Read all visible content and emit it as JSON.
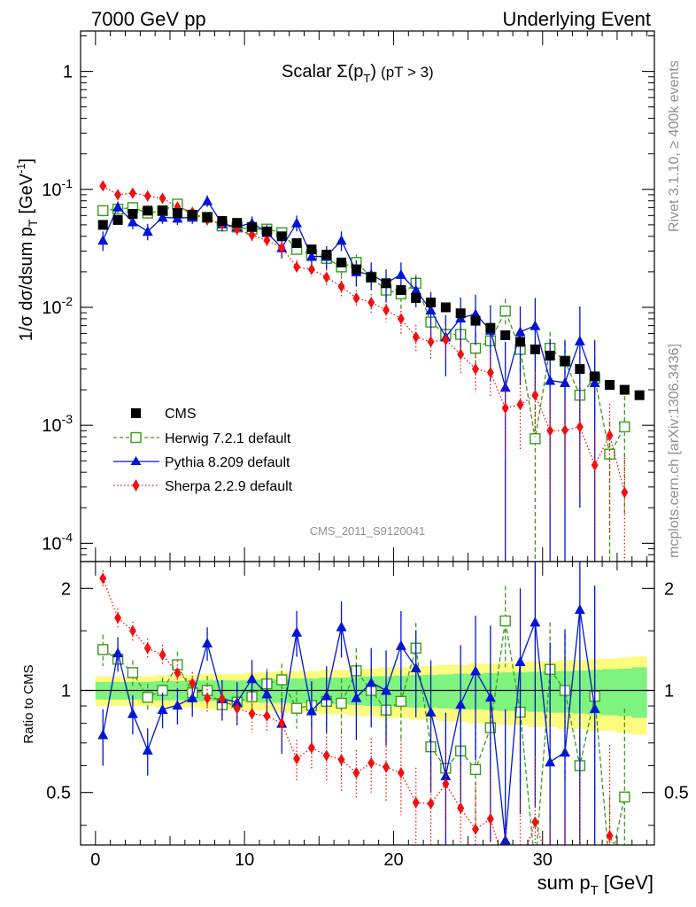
{
  "header": {
    "left": "7000 GeV pp",
    "right": "Underlying Event"
  },
  "side": {
    "rivet": "Rivet 3.1.10, ≥ 400k events",
    "mcplots": "mcplots.cern.ch [arXiv:1306.3436]"
  },
  "main": {
    "title_main": "Scalar Σ(p",
    "title_sub": "T",
    "title_close": ")",
    "title_cut": "(pT >  3)",
    "watermark": "CMS_2011_S9120041",
    "ylabel": "1/σ dσ/dsum p",
    "ylabel_sub": "T",
    "ylabel_unit": "[GeV",
    "ylabel_unit_sup": "-1",
    "ylabel_close": "]",
    "yticks": [
      {
        "base": "10",
        "exp": "-4",
        "value": 0.0001
      },
      {
        "base": "10",
        "exp": "-3",
        "value": 0.001
      },
      {
        "base": "10",
        "exp": "-2",
        "value": 0.01
      },
      {
        "base": "10",
        "exp": "-1",
        "value": 0.1
      },
      {
        "base": "1",
        "exp": "",
        "value": 1
      }
    ]
  },
  "ratio": {
    "ylabel": "Ratio to CMS",
    "yticks": [
      "0.5",
      "1",
      "2"
    ]
  },
  "xaxis": {
    "label": "sum p",
    "label_sub": "T",
    "label_unit": "[GeV]",
    "ticks": [
      "0",
      "10",
      "20",
      "30"
    ]
  },
  "legend": {
    "cms": "CMS",
    "herwig": "Herwig 7.2.1 default",
    "pythia": "Pythia 8.209 default",
    "sherpa": "Sherpa 2.2.9 default"
  },
  "colors": {
    "cms": "#000000",
    "herwig": "#3a9a1c",
    "pythia": "#0015d6",
    "sherpa": "#f01010",
    "band_inner": "#7ef37e",
    "band_outer": "#fbfb7e"
  },
  "chart_data": {
    "type": "scatter",
    "xlabel": "sum pT [GeV]",
    "ylabel": "1/σ dσ/dsum pT [GeV^-1]",
    "log_y": true,
    "xlim": [
      -1,
      37.5
    ],
    "ylim": [
      7e-05,
      2.2
    ],
    "ratio_ylim": [
      0.35,
      2.4
    ],
    "x": [
      0.5,
      1.5,
      2.5,
      3.5,
      4.5,
      5.5,
      6.5,
      7.5,
      8.5,
      9.5,
      10.5,
      11.5,
      12.5,
      13.5,
      14.5,
      15.5,
      16.5,
      17.5,
      18.5,
      19.5,
      20.5,
      21.5,
      22.5,
      23.5,
      24.5,
      25.5,
      26.5,
      27.5,
      28.5,
      29.5,
      30.5,
      31.5,
      32.5,
      33.5,
      34.5,
      35.5,
      36.5
    ],
    "series": [
      {
        "name": "CMS",
        "values": [
          0.05,
          0.055,
          0.062,
          0.066,
          0.066,
          0.063,
          0.061,
          0.058,
          0.054,
          0.052,
          0.048,
          0.044,
          0.04,
          0.035,
          0.031,
          0.028,
          0.024,
          0.021,
          0.018,
          0.016,
          0.014,
          0.012,
          0.011,
          0.01,
          0.0089,
          0.0077,
          0.0067,
          0.0058,
          0.0051,
          0.0044,
          0.0039,
          0.0035,
          0.003,
          0.0026,
          0.0022,
          0.002,
          0.0018
        ]
      },
      {
        "name": "Herwig 7.2.1 default",
        "values": [
          0.066,
          0.068,
          0.07,
          0.063,
          0.066,
          0.075,
          0.06,
          0.058,
          0.049,
          0.048,
          0.046,
          0.046,
          0.043,
          0.031,
          0.028,
          0.026,
          0.022,
          0.024,
          0.018,
          0.014,
          0.013,
          0.016,
          0.0075,
          0.0059,
          0.0059,
          0.0045,
          0.0052,
          0.0093,
          0.0044,
          0.00077,
          0.0045,
          0.0035,
          0.0018,
          0.0025,
          0.00057,
          0.00097
        ],
        "err": [
          0.007,
          0.006,
          0.006,
          0.006,
          0.006,
          0.007,
          0.006,
          0.006,
          0.005,
          0.005,
          0.005,
          0.005,
          0.005,
          0.004,
          0.004,
          0.004,
          0.004,
          0.004,
          0.003,
          0.003,
          0.003,
          0.003,
          0.002,
          0.0018,
          0.0018,
          0.0016,
          0.0017,
          0.0025,
          0.0017,
          0.0007,
          0.0017,
          0.0016,
          0.001,
          0.0014,
          0.0005,
          0.0008
        ]
      },
      {
        "name": "Pythia 8.209 default",
        "values": [
          0.037,
          0.071,
          0.053,
          0.044,
          0.058,
          0.057,
          0.058,
          0.08,
          0.051,
          0.048,
          0.052,
          0.043,
          0.032,
          0.052,
          0.027,
          0.027,
          0.037,
          0.02,
          0.019,
          0.016,
          0.019,
          0.014,
          0.0095,
          0.0056,
          0.0081,
          0.0088,
          0.0064,
          0.0021,
          0.0062,
          0.007,
          0.0024,
          0.0023,
          0.0052,
          0.0023
        ],
        "err": [
          0.007,
          0.008,
          0.007,
          0.007,
          0.007,
          0.007,
          0.007,
          0.009,
          0.007,
          0.007,
          0.007,
          0.007,
          0.006,
          0.008,
          0.006,
          0.006,
          0.007,
          0.005,
          0.005,
          0.005,
          0.005,
          0.004,
          0.004,
          0.003,
          0.004,
          0.004,
          0.004,
          0.003,
          0.004,
          0.005,
          0.003,
          0.003,
          0.005,
          0.003
        ]
      },
      {
        "name": "Sherpa 2.2.9 default",
        "values": [
          0.107,
          0.09,
          0.093,
          0.088,
          0.084,
          0.071,
          0.064,
          0.055,
          0.051,
          0.046,
          0.041,
          0.037,
          0.032,
          0.022,
          0.021,
          0.018,
          0.015,
          0.012,
          0.011,
          0.0095,
          0.008,
          0.0056,
          0.0051,
          0.0053,
          0.004,
          0.003,
          0.0028,
          0.0014,
          0.0015,
          0.0018,
          0.0009,
          0.00091,
          0.00097,
          0.00046,
          0.00082,
          0.00027
        ],
        "err": [
          0.006,
          0.006,
          0.006,
          0.006,
          0.006,
          0.006,
          0.005,
          0.005,
          0.005,
          0.005,
          0.005,
          0.004,
          0.004,
          0.003,
          0.003,
          0.003,
          0.003,
          0.002,
          0.002,
          0.002,
          0.002,
          0.0015,
          0.0015,
          0.0015,
          0.0013,
          0.0011,
          0.0011,
          0.0009,
          0.0009,
          0.001,
          0.0007,
          0.0007,
          0.0007,
          0.0004,
          0.0007,
          0.0003
        ]
      }
    ],
    "ratio_band": {
      "inner": [
        0.06,
        0.06,
        0.06,
        0.06,
        0.065,
        0.065,
        0.07,
        0.07,
        0.07,
        0.07,
        0.075,
        0.08,
        0.08,
        0.085,
        0.085,
        0.09,
        0.09,
        0.095,
        0.1,
        0.1,
        0.105,
        0.11,
        0.11,
        0.115,
        0.12,
        0.12,
        0.125,
        0.13,
        0.13,
        0.135,
        0.14,
        0.14,
        0.145,
        0.15,
        0.155,
        0.16,
        0.17
      ],
      "outer": [
        0.1,
        0.1,
        0.1,
        0.1,
        0.11,
        0.11,
        0.11,
        0.12,
        0.12,
        0.12,
        0.13,
        0.13,
        0.14,
        0.14,
        0.14,
        0.15,
        0.15,
        0.16,
        0.16,
        0.17,
        0.17,
        0.18,
        0.18,
        0.19,
        0.19,
        0.2,
        0.2,
        0.21,
        0.21,
        0.22,
        0.22,
        0.23,
        0.23,
        0.24,
        0.24,
        0.25,
        0.26
      ]
    }
  }
}
